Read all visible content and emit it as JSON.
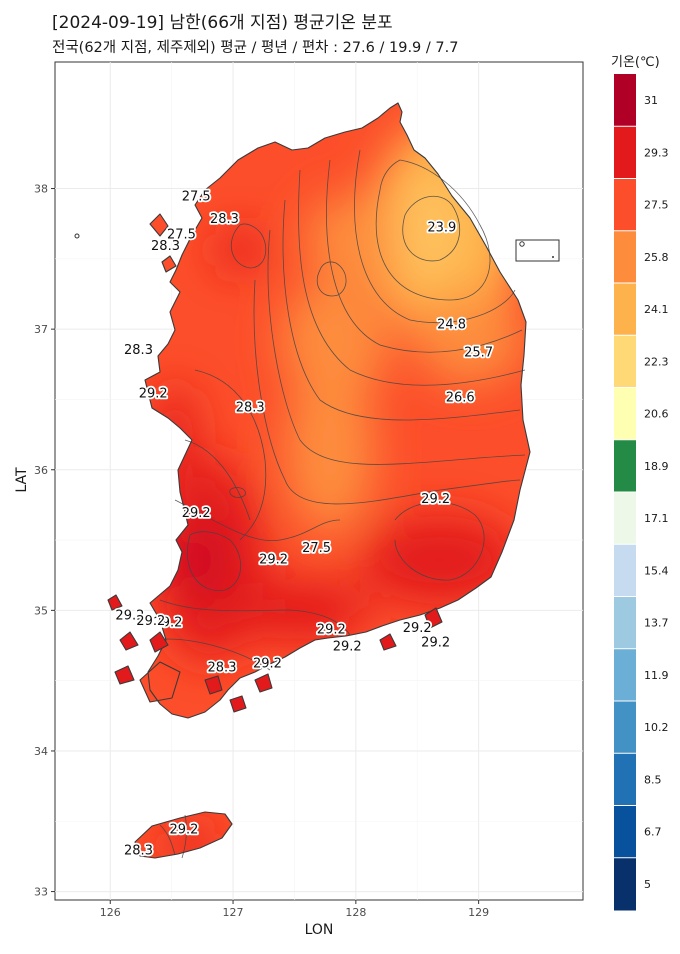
{
  "title": "[2024-09-19] 남한(66개 지점) 평균기온 분포",
  "subtitle": "전국(62개 지점, 제주제외) 평균 / 평년 / 편차 : 27.6 / 19.9 / 7.7",
  "chart_data": {
    "type": "heatmap",
    "xlabel": "LON",
    "ylabel": "LAT",
    "xlim": [
      125.55,
      129.85
    ],
    "ylim": [
      32.94,
      38.9
    ],
    "x_ticks": [
      126,
      127,
      128,
      129
    ],
    "y_ticks": [
      33,
      34,
      35,
      36,
      37,
      38
    ],
    "grid": true,
    "legend": {
      "title": "기온(℃)",
      "placement": "right",
      "breaks": [
        "31",
        "29.3",
        "27.5",
        "25.8",
        "24.1",
        "22.3",
        "20.6",
        "18.9",
        "17.1",
        "15.4",
        "13.7",
        "11.9",
        "10.2",
        "8.5",
        "6.7",
        "5"
      ],
      "colors": [
        "#b10026",
        "#e31a1c",
        "#fc4e2a",
        "#fd8d3c",
        "#feb24c",
        "#fed976",
        "#ffffb2",
        "#238b45",
        "#edf8e9",
        "#c6dbef",
        "#9ecae1",
        "#6baed6",
        "#4292c6",
        "#2171b5",
        "#08519c",
        "#08306b"
      ]
    },
    "contour_labels": [
      {
        "text": "23.9",
        "lon": 128.7,
        "lat": 37.73
      },
      {
        "text": "24.8",
        "lon": 128.78,
        "lat": 37.04
      },
      {
        "text": "25.7",
        "lon": 129.0,
        "lat": 36.84
      },
      {
        "text": "26.6",
        "lon": 128.85,
        "lat": 36.52
      },
      {
        "text": "27.5",
        "lon": 126.7,
        "lat": 37.95
      },
      {
        "text": "27.5",
        "lon": 126.58,
        "lat": 37.68
      },
      {
        "text": "27.5",
        "lon": 127.68,
        "lat": 35.45
      },
      {
        "text": "28.3",
        "lon": 126.93,
        "lat": 37.79
      },
      {
        "text": "28.3",
        "lon": 126.45,
        "lat": 37.6
      },
      {
        "text": "28.3",
        "lon": 126.23,
        "lat": 36.86
      },
      {
        "text": "28.3",
        "lon": 127.14,
        "lat": 36.45
      },
      {
        "text": "28.3",
        "lon": 126.91,
        "lat": 34.6
      },
      {
        "text": "28.3",
        "lon": 126.23,
        "lat": 33.3
      },
      {
        "text": "29.2",
        "lon": 126.35,
        "lat": 36.55
      },
      {
        "text": "29.2",
        "lon": 126.7,
        "lat": 35.7
      },
      {
        "text": "29.2",
        "lon": 127.33,
        "lat": 35.37
      },
      {
        "text": "29.2",
        "lon": 128.65,
        "lat": 35.8
      },
      {
        "text": "29.2",
        "lon": 126.47,
        "lat": 34.92
      },
      {
        "text": "29.2",
        "lon": 126.16,
        "lat": 34.97
      },
      {
        "text": "29.2",
        "lon": 126.33,
        "lat": 34.93
      },
      {
        "text": "29.2",
        "lon": 127.28,
        "lat": 34.63
      },
      {
        "text": "29.2",
        "lon": 127.8,
        "lat": 34.87
      },
      {
        "text": "29.2",
        "lon": 127.93,
        "lat": 34.75
      },
      {
        "text": "29.2",
        "lon": 128.5,
        "lat": 34.88
      },
      {
        "text": "29.2",
        "lon": 128.65,
        "lat": 34.78
      },
      {
        "text": "29.2",
        "lon": 126.6,
        "lat": 33.45
      }
    ]
  }
}
